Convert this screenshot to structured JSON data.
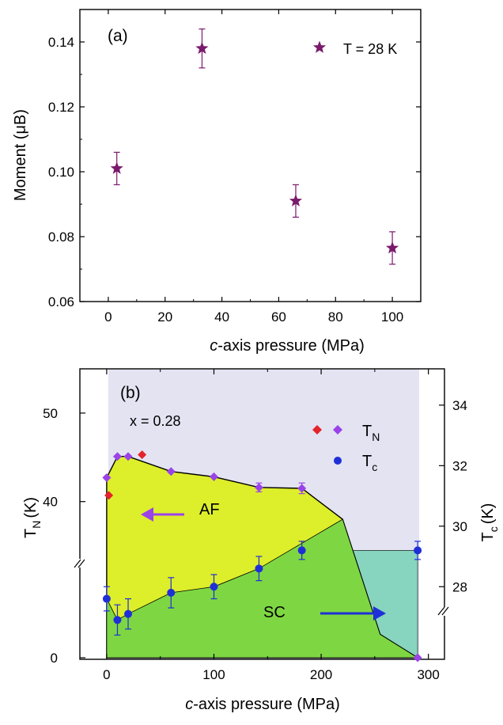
{
  "chart_data": [
    {
      "panel": "(a)",
      "type": "scatter",
      "xlabel_italic": "c",
      "xlabel_rest": "-axis pressure (MPa)",
      "ylabel": "Moment (μB)",
      "xlim": [
        -10,
        110
      ],
      "ylim": [
        0.06,
        0.15
      ],
      "x_ticks": [
        0,
        20,
        40,
        60,
        80,
        100
      ],
      "y_ticks": [
        0.06,
        0.08,
        0.1,
        0.12,
        0.14
      ],
      "y_tick_labels": [
        "0.06",
        "0.08",
        "0.10",
        "0.12",
        "0.14"
      ],
      "legend": {
        "label": "T = 28 K",
        "placement": "top-right",
        "marker": "star"
      },
      "color": "#7a1a6c",
      "series": [
        {
          "name": "T = 28 K",
          "points": [
            {
              "x": 3,
              "y": 0.101,
              "err": 0.005
            },
            {
              "x": 33,
              "y": 0.138,
              "err": 0.006
            },
            {
              "x": 66,
              "y": 0.091,
              "err": 0.005
            },
            {
              "x": 100,
              "y": 0.0765,
              "err": 0.005
            }
          ]
        }
      ]
    },
    {
      "panel": "(b)",
      "type": "scatter",
      "annotation": "x = 0.28",
      "xlabel_italic": "c",
      "xlabel_rest": "-axis pressure (MPa)",
      "ylabel_left": {
        "main": "T",
        "sub": "N",
        "unit": "(K)"
      },
      "ylabel_right": {
        "main": "T",
        "sub": "c",
        "unit": "(K)"
      },
      "xlim": [
        -25,
        315
      ],
      "x_ticks": [
        0,
        100,
        200,
        300
      ],
      "left_axis": {
        "broken": true,
        "ticks": [
          0,
          40,
          50
        ],
        "range_upper": [
          33,
          55
        ]
      },
      "right_axis": {
        "ticks": [
          28,
          30,
          32,
          34
        ],
        "range": [
          25.6,
          35.2
        ]
      },
      "region_labels": [
        "AF",
        "SC"
      ],
      "colors": {
        "background": "#e3e3f2",
        "af": "#ddee2a",
        "sc": "#7ed742",
        "sc_extra": "#87d4bf",
        "tn_red": "#e4242b",
        "tn_violet": "#9b42e9",
        "tc": "#1f2fd8",
        "arrow_af": "#9b42e9",
        "arrow_sc": "#1f2fd8"
      },
      "legend": [
        {
          "label_main": "T",
          "label_sub": "N",
          "markers": [
            "red-diamond",
            "violet-diamond"
          ]
        },
        {
          "label_main": "T",
          "label_sub": "c",
          "markers": [
            "blue-circle"
          ]
        }
      ],
      "series": [
        {
          "name": "T_N (red)",
          "points": [
            {
              "x": 2,
              "y": 40.7
            },
            {
              "x": 33,
              "y": 45.3
            }
          ]
        },
        {
          "name": "T_N (violet)",
          "points": [
            {
              "x": 0,
              "y": 42.7
            },
            {
              "x": 10,
              "y": 45.1
            },
            {
              "x": 20,
              "y": 45.1
            },
            {
              "x": 60,
              "y": 43.4
            },
            {
              "x": 100,
              "y": 42.8
            },
            {
              "x": 142,
              "y": 41.6,
              "err": 0.5
            },
            {
              "x": 182,
              "y": 41.5,
              "err": 0.6
            },
            {
              "x": 290,
              "y": 0
            }
          ]
        },
        {
          "name": "T_c",
          "points": [
            {
              "x": 0,
              "y": 27.6,
              "err": 0.4
            },
            {
              "x": 10,
              "y": 26.9,
              "err": 0.5
            },
            {
              "x": 20,
              "y": 27.1,
              "err": 0.5
            },
            {
              "x": 60,
              "y": 27.8,
              "err": 0.5
            },
            {
              "x": 100,
              "y": 28.0,
              "err": 0.4
            },
            {
              "x": 142,
              "y": 28.6,
              "err": 0.4
            },
            {
              "x": 182,
              "y": 29.2,
              "err": 0.3
            },
            {
              "x": 290,
              "y": 29.2,
              "err": 0.3
            }
          ]
        }
      ]
    }
  ]
}
